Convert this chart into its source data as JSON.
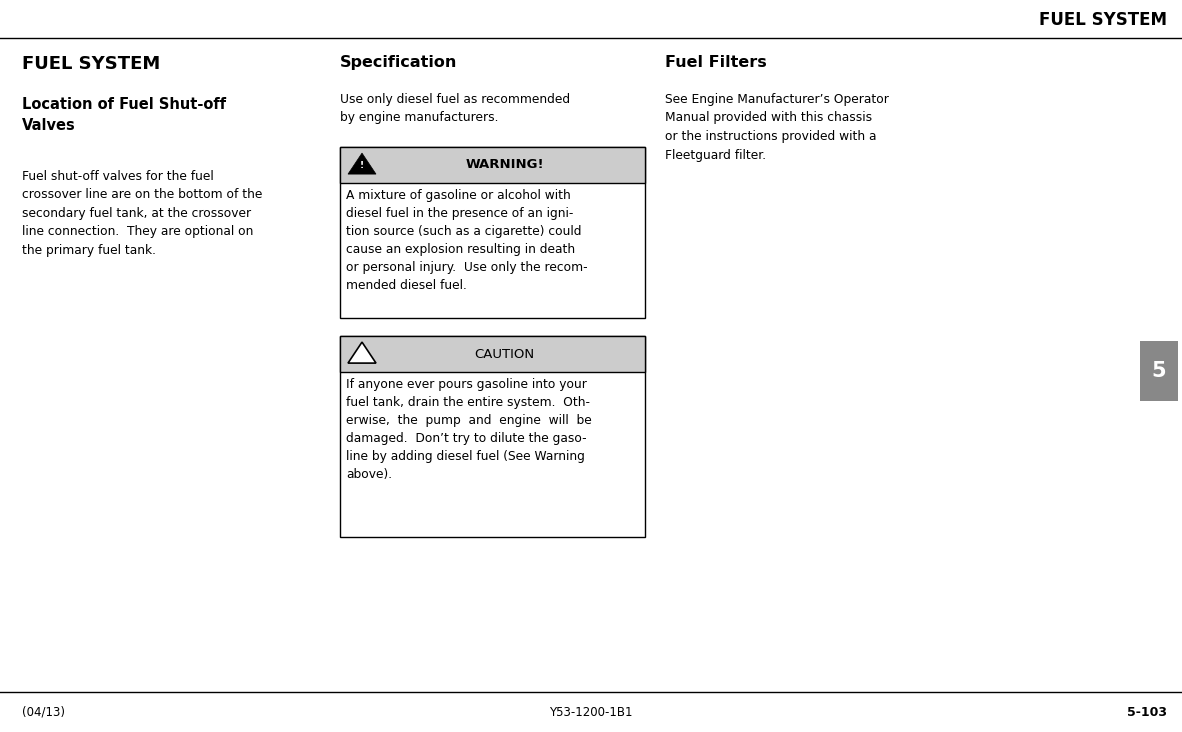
{
  "page_width": 11.82,
  "page_height": 7.32,
  "bg_color": "#ffffff",
  "line_color": "#000000",
  "header_text": "FUEL SYSTEM",
  "footer_left": "(04/13)",
  "footer_center": "Y53-1200-1B1",
  "footer_right": "5-103",
  "tab_number": "5",
  "tab_bg": "#888888",
  "col1_title": "FUEL SYSTEM",
  "col1_subtitle": "Location of Fuel Shut-off\nValves",
  "col1_body": "Fuel shut-off valves for the fuel\ncrossover line are on the bottom of the\nsecondary fuel tank, at the crossover\nline connection.  They are optional on\nthe primary fuel tank.",
  "col2_title": "Specification",
  "col2_body": "Use only diesel fuel as recommended\nby engine manufacturers.",
  "warning_header": "WARNING!",
  "warning_body": "A mixture of gasoline or alcohol with\ndiesel fuel in the presence of an igni-\ntion source (such as a cigarette) could\ncause an explosion resulting in death\nor personal injury.  Use only the recom-\nmended diesel fuel.",
  "caution_header": "CAUTION",
  "caution_body": "If anyone ever pours gasoline into your\nfuel tank, drain the entire system.  Oth-\nerwise,  the  pump  and  engine  will  be\ndamaged.  Don’t try to dilute the gaso-\nline by adding diesel fuel (See Warning\nabove).",
  "col3_title": "Fuel Filters",
  "col3_body": "See Engine Manufacturer’s Operator\nManual provided with this chassis\nor the instructions provided with a\nFleetguard filter.",
  "box_border_color": "#000000",
  "box_header_bg": "#cccccc"
}
